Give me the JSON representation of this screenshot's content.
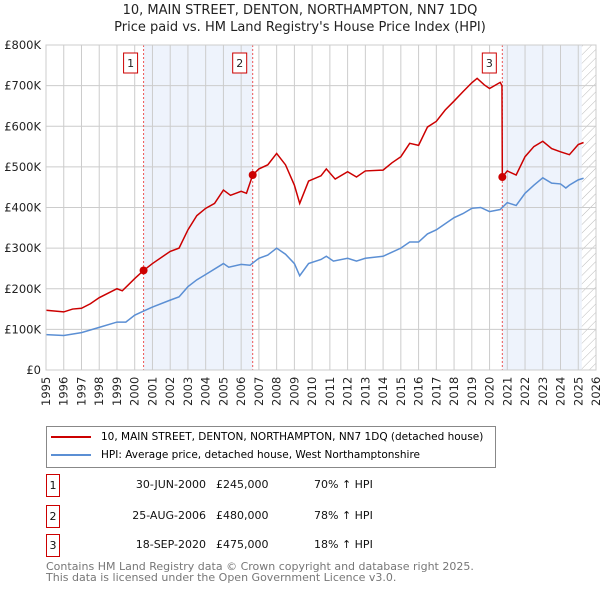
{
  "chart_data": {
    "type": "line",
    "title": "10, MAIN STREET, DENTON, NORTHAMPTON, NN7 1DQ",
    "subtitle": "Price paid vs. HM Land Registry's House Price Index (HPI)",
    "ylim": [
      0,
      800000
    ],
    "xlim": [
      1995,
      2026
    ],
    "yticks": [
      {
        "v": 0,
        "label": "£0"
      },
      {
        "v": 100000,
        "label": "£100K"
      },
      {
        "v": 200000,
        "label": "£200K"
      },
      {
        "v": 300000,
        "label": "£300K"
      },
      {
        "v": 400000,
        "label": "£400K"
      },
      {
        "v": 500000,
        "label": "£500K"
      },
      {
        "v": 600000,
        "label": "£600K"
      },
      {
        "v": 700000,
        "label": "£700K"
      },
      {
        "v": 800000,
        "label": "£800K"
      }
    ],
    "xticks": [
      "1995",
      "1996",
      "1997",
      "1998",
      "1999",
      "2000",
      "2001",
      "2002",
      "2003",
      "2004",
      "2005",
      "2006",
      "2007",
      "2008",
      "2009",
      "2010",
      "2011",
      "2012",
      "2013",
      "2014",
      "2015",
      "2016",
      "2017",
      "2018",
      "2019",
      "2020",
      "2021",
      "2022",
      "2023",
      "2024",
      "2025",
      "2026"
    ],
    "grid": true,
    "series": [
      {
        "name": "10, MAIN STREET, DENTON, NORTHAMPTON, NN7 1DQ (detached house)",
        "color": "#cc0000",
        "x": [
          1995,
          1996,
          1996.5,
          1997,
          1997.5,
          1998,
          1999,
          1999.3,
          2000,
          2000.5,
          2001,
          2002,
          2002.5,
          2003,
          2003.5,
          2004,
          2004.5,
          2005,
          2005.4,
          2006,
          2006.3,
          2006.65,
          2007,
          2007.5,
          2008,
          2008.5,
          2009,
          2009.3,
          2009.8,
          2010.5,
          2010.8,
          2011.3,
          2012,
          2012.5,
          2013,
          2014,
          2014.5,
          2015,
          2015.5,
          2016,
          2016.5,
          2017,
          2017.5,
          2018,
          2018.5,
          2019,
          2019.3,
          2019.7,
          2020,
          2020.6,
          2020.7,
          2020.72,
          2021,
          2021.5,
          2022,
          2022.5,
          2023,
          2023.5,
          2024,
          2024.5,
          2025,
          2025.3
        ],
        "y": [
          147,
          143,
          150,
          152,
          163,
          178,
          200,
          195,
          225,
          245,
          262,
          292,
          300,
          345,
          380,
          398,
          410,
          443,
          430,
          440,
          435,
          480,
          495,
          505,
          533,
          505,
          455,
          410,
          465,
          478,
          495,
          470,
          488,
          475,
          490,
          492,
          510,
          525,
          558,
          553,
          598,
          612,
          640,
          662,
          685,
          707,
          718,
          702,
          693,
          708,
          700,
          475,
          490,
          480,
          525,
          550,
          563,
          545,
          537,
          530,
          555,
          560
        ]
      },
      {
        "name": "HPI: Average price, detached house, West Northamptonshire",
        "color": "#5b8fd4",
        "x": [
          1995,
          1996,
          1997,
          1998,
          1999,
          1999.5,
          2000,
          2000.5,
          2001,
          2002,
          2002.5,
          2003,
          2003.5,
          2004,
          2005,
          2005.3,
          2006,
          2006.5,
          2007,
          2007.5,
          2008,
          2008.5,
          2009,
          2009.3,
          2009.8,
          2010.5,
          2010.8,
          2011.2,
          2012,
          2012.5,
          2013,
          2014,
          2014.5,
          2015,
          2015.5,
          2016,
          2016.5,
          2017,
          2017.5,
          2018,
          2018.5,
          2019,
          2019.5,
          2020,
          2020.6,
          2021,
          2021.5,
          2022,
          2022.5,
          2023,
          2023.5,
          2024,
          2024.3,
          2024.5,
          2025,
          2025.3
        ],
        "y": [
          87,
          85,
          92,
          105,
          118,
          118,
          135,
          145,
          155,
          172,
          180,
          205,
          222,
          235,
          262,
          253,
          260,
          258,
          275,
          283,
          300,
          285,
          262,
          232,
          262,
          272,
          280,
          268,
          275,
          268,
          275,
          280,
          290,
          300,
          315,
          315,
          335,
          345,
          360,
          375,
          385,
          398,
          400,
          390,
          395,
          412,
          405,
          435,
          455,
          473,
          460,
          458,
          448,
          455,
          468,
          472
        ]
      }
    ],
    "y_unit": "thousands GBP",
    "sales": [
      {
        "num": "1",
        "x": 2000.5,
        "price": 245000,
        "date": "30-JUN-2000",
        "price_label": "£245,000",
        "hpi": "70% ↑ HPI"
      },
      {
        "num": "2",
        "x": 2006.65,
        "price": 480000,
        "date": "25-AUG-2006",
        "price_label": "£480,000",
        "hpi": "78% ↑ HPI"
      },
      {
        "num": "3",
        "x": 2020.72,
        "price": 475000,
        "date": "18-SEP-2020",
        "price_label": "£475,000",
        "hpi": "18% ↑ HPI"
      }
    ],
    "shaded": [
      [
        2000.5,
        2006.65
      ],
      [
        2020.72,
        2025.2
      ]
    ],
    "hatched_from": 2025.2
  },
  "footer": {
    "line1": "Contains HM Land Registry data © Crown copyright and database right 2025.",
    "line2": "This data is licensed under the Open Government Licence v3.0."
  }
}
